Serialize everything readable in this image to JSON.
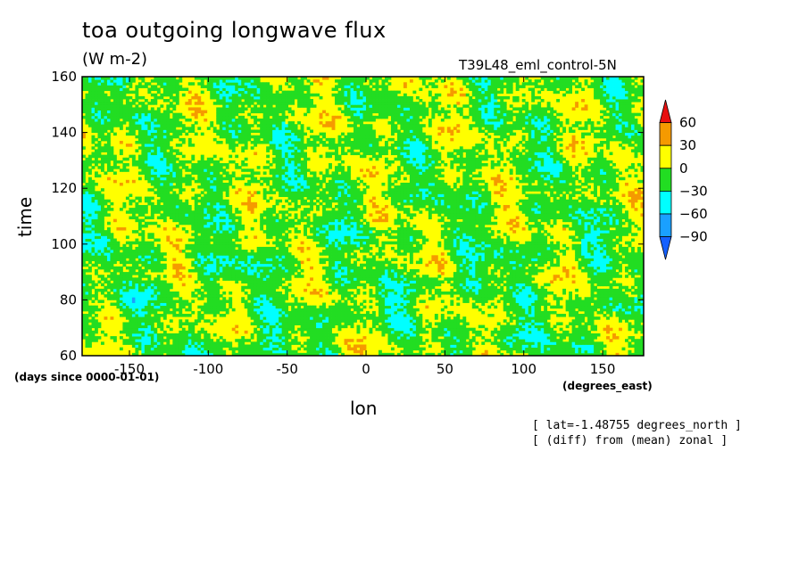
{
  "chart_data": {
    "type": "heatmap",
    "title": "toa outgoing longwave flux",
    "units": "(W m-2)",
    "run_label": "T39L48_eml_control-5N",
    "xlabel": "lon",
    "ylabel": "time",
    "x_units": "(degrees_east)",
    "y_units": "(days since 0000-01-01)",
    "xlim": [
      -180,
      176
    ],
    "ylim": [
      60,
      160
    ],
    "x_ticks": [
      -150,
      -100,
      -50,
      0,
      50,
      100,
      150
    ],
    "x_tick_labels": [
      "-150",
      "-100",
      "-50",
      "0",
      "50",
      "100",
      "150"
    ],
    "y_ticks": [
      60,
      80,
      100,
      120,
      140,
      160
    ],
    "y_tick_labels": [
      "60",
      "80",
      "100",
      "120",
      "140",
      "160"
    ],
    "colorbar": {
      "levels": [
        60,
        30,
        0,
        -30,
        -60,
        -90
      ],
      "level_labels": [
        "60",
        "30",
        "0",
        "−30",
        "−60",
        "−90"
      ],
      "colors": [
        "#e81010",
        "#f59a00",
        "#ffff00",
        "#22dd22",
        "#00ffff",
        "#1aa0ff",
        "#1560ff"
      ],
      "extend": "both"
    },
    "notes": [
      "[ lat=-1.48755 degrees_north ]",
      "[ (diff) from (mean) zonal ]"
    ],
    "grid": false
  }
}
